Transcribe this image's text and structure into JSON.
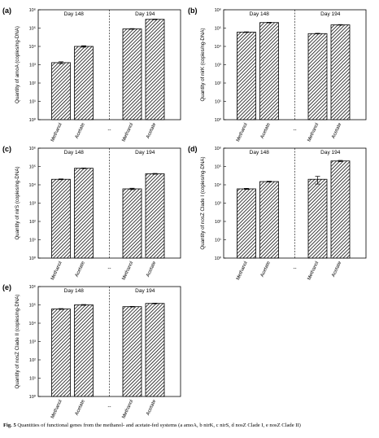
{
  "hatch_color": "#000000",
  "caption": {
    "prefix": "Fig. 5",
    "text": "  Quantities of functional genes from the methanol- and acetate-fed systems (a amoA, b nirK, c nirS, d nosZ Clade I, e nosZ Clade II)"
  },
  "chart_data": [
    {
      "type": "bar",
      "panel": "(a)",
      "ylabel": "Quantity of amoA (copies/ng-DNA)",
      "yscale": "log",
      "ylim": [
        1,
        1000000
      ],
      "ytick_labels": [
        "10⁰",
        "10¹",
        "10²",
        "10³",
        "10⁴",
        "10⁵",
        "10⁶"
      ],
      "groups": [
        {
          "label": "Day 148",
          "categories": [
            "Methanol",
            "Acetate"
          ],
          "values": [
            1300,
            10000
          ],
          "errors": [
            150,
            900
          ]
        },
        {
          "label": "Day 194",
          "categories": [
            "Methanol",
            "Acetate"
          ],
          "values": [
            90000,
            300000
          ],
          "errors": [
            4000,
            10000
          ]
        }
      ],
      "gap_label": "--"
    },
    {
      "type": "bar",
      "panel": "(b)",
      "ylabel": "Quantity of nirK (copies/ng-DNA)",
      "yscale": "log",
      "ylim": [
        1,
        1000000
      ],
      "ytick_labels": [
        "10⁰",
        "10¹",
        "10²",
        "10³",
        "10⁴",
        "10⁵",
        "10⁶"
      ],
      "groups": [
        {
          "label": "Day 148",
          "categories": [
            "Methanol",
            "Acetate"
          ],
          "values": [
            60000,
            200000
          ],
          "errors": [
            2500,
            8000
          ]
        },
        {
          "label": "Day 194",
          "categories": [
            "Methanol",
            "Acetate"
          ],
          "values": [
            50000,
            150000
          ],
          "errors": [
            2000,
            6000
          ]
        }
      ],
      "gap_label": "--"
    },
    {
      "type": "bar",
      "panel": "(c)",
      "ylabel": "Quantity of nirS (copies/ng-DNA)",
      "yscale": "log",
      "ylim": [
        1,
        1000000
      ],
      "ytick_labels": [
        "10⁰",
        "10¹",
        "10²",
        "10³",
        "10⁴",
        "10⁵",
        "10⁶"
      ],
      "groups": [
        {
          "label": "Day 148",
          "categories": [
            "Methanol",
            "Acetate"
          ],
          "values": [
            20000,
            80000
          ],
          "errors": [
            1000,
            3000
          ]
        },
        {
          "label": "Day 194",
          "categories": [
            "Methanol",
            "Acetate"
          ],
          "values": [
            6000,
            40000
          ],
          "errors": [
            500,
            2000
          ]
        }
      ],
      "gap_label": "--"
    },
    {
      "type": "bar",
      "panel": "(d)",
      "ylabel": "Quantity of nosZ Clade I (copies/ng-DNA)",
      "yscale": "log",
      "ylim": [
        1,
        1000000
      ],
      "ytick_labels": [
        "10⁰",
        "10¹",
        "10²",
        "10³",
        "10⁴",
        "10⁵",
        "10⁶"
      ],
      "groups": [
        {
          "label": "Day 148",
          "categories": [
            "Methanol",
            "Acetate"
          ],
          "values": [
            6000,
            15000
          ],
          "errors": [
            400,
            800
          ]
        },
        {
          "label": "Day 194",
          "categories": [
            "Methanol",
            "Acetate"
          ],
          "values": [
            20000,
            200000
          ],
          "errors": [
            9000,
            15000
          ]
        }
      ],
      "gap_label": "--"
    },
    {
      "type": "bar",
      "panel": "(e)",
      "ylabel": "Quantity of nosZ Clade II (copies/ng-DNA)",
      "yscale": "log",
      "ylim": [
        1,
        1000000
      ],
      "ytick_labels": [
        "10⁰",
        "10¹",
        "10²",
        "10³",
        "10⁴",
        "10⁵",
        "10⁶"
      ],
      "groups": [
        {
          "label": "Day 148",
          "categories": [
            "Methanol",
            "Acetate"
          ],
          "values": [
            60000,
            100000
          ],
          "errors": [
            3000,
            5000
          ]
        },
        {
          "label": "Day 194",
          "categories": [
            "Methanol",
            "Acetate"
          ],
          "values": [
            80000,
            120000
          ],
          "errors": [
            3000,
            5000
          ]
        }
      ],
      "gap_label": "--"
    }
  ]
}
